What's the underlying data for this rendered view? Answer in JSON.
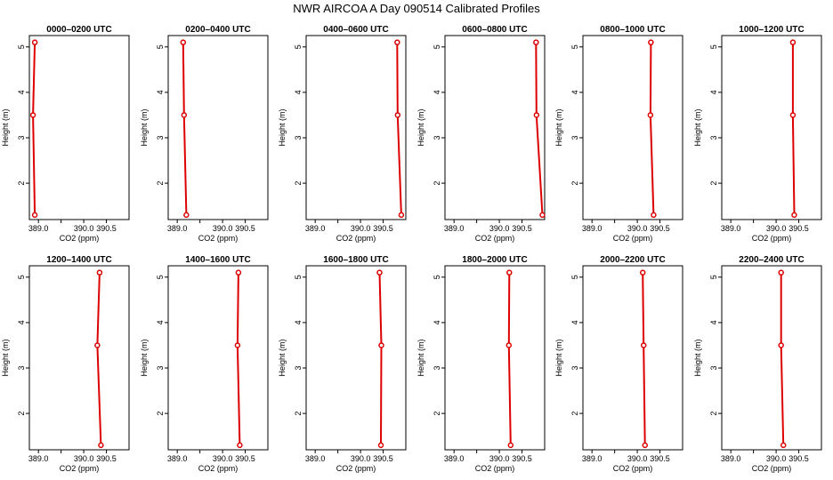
{
  "title": "NWR AIRCOA A  Day 090514  Calibrated Profiles",
  "chart_data": {
    "type": "line",
    "xlabel": "CO2 (ppm)",
    "ylabel": "Height (m)",
    "xlim": [
      388.8,
      391.0
    ],
    "ylim": [
      1.2,
      5.25
    ],
    "xticks": [
      389.0,
      389.5,
      390.0,
      390.5
    ],
    "xtick_labels": [
      "389.0",
      "",
      "390.0",
      "390.5"
    ],
    "yticks": [
      2,
      3,
      4,
      5
    ],
    "ytick_labels": [
      "2",
      "3",
      "4",
      "5"
    ],
    "series_color": "#dd0000",
    "panels": [
      {
        "title": "0000–0200 UTC",
        "heights": [
          5.1,
          3.5,
          1.3
        ],
        "co2": [
          388.92,
          388.88,
          388.92
        ]
      },
      {
        "title": "0200–0400 UTC",
        "heights": [
          5.1,
          3.5,
          1.3
        ],
        "co2": [
          389.13,
          389.15,
          389.2
        ]
      },
      {
        "title": "0400–0600 UTC",
        "heights": [
          5.1,
          3.5,
          1.3
        ],
        "co2": [
          390.81,
          390.82,
          390.9
        ]
      },
      {
        "title": "0600–0800 UTC",
        "heights": [
          5.1,
          3.5,
          1.3
        ],
        "co2": [
          390.81,
          390.82,
          390.95
        ]
      },
      {
        "title": "0800–1000 UTC",
        "heights": [
          5.1,
          3.5,
          1.3
        ],
        "co2": [
          390.3,
          390.29,
          390.36
        ]
      },
      {
        "title": "1000–1200 UTC",
        "heights": [
          5.1,
          3.5,
          1.3
        ],
        "co2": [
          390.37,
          390.37,
          390.4
        ]
      },
      {
        "title": "1200–1400 UTC",
        "heights": [
          5.1,
          3.5,
          1.3
        ],
        "co2": [
          390.35,
          390.3,
          390.38
        ]
      },
      {
        "title": "1400–1600 UTC",
        "heights": [
          5.1,
          3.5,
          1.3
        ],
        "co2": [
          390.35,
          390.33,
          390.38
        ]
      },
      {
        "title": "1600–1800 UTC",
        "heights": [
          5.1,
          3.5,
          1.3
        ],
        "co2": [
          390.42,
          390.46,
          390.45
        ]
      },
      {
        "title": "1800–2000 UTC",
        "heights": [
          5.1,
          3.5,
          1.3
        ],
        "co2": [
          390.22,
          390.21,
          390.25
        ]
      },
      {
        "title": "2000–2200 UTC",
        "heights": [
          5.1,
          3.5,
          1.3
        ],
        "co2": [
          390.12,
          390.14,
          390.17
        ]
      },
      {
        "title": "2200–2400 UTC",
        "heights": [
          5.1,
          3.5,
          1.3
        ],
        "co2": [
          390.11,
          390.11,
          390.16
        ]
      }
    ]
  }
}
